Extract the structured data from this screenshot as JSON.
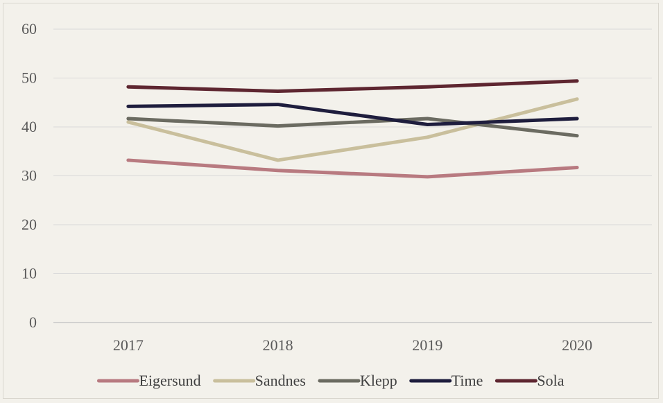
{
  "chart_data": {
    "type": "line",
    "title": "",
    "xlabel": "",
    "ylabel": "",
    "categories": [
      "2017",
      "2018",
      "2019",
      "2020"
    ],
    "ylim": [
      0,
      60
    ],
    "yticks": [
      "0",
      "10",
      "20",
      "30",
      "40",
      "50",
      "60"
    ],
    "grid": true,
    "legend_position": "bottom",
    "series": [
      {
        "name": "Eigersund",
        "color": "#b87a80",
        "values": [
          33.2,
          31.1,
          29.8,
          31.7
        ]
      },
      {
        "name": "Sandnes",
        "color": "#c9bf9c",
        "values": [
          41.0,
          33.2,
          37.9,
          45.7
        ]
      },
      {
        "name": "Klepp",
        "color": "#6b6b61",
        "values": [
          41.7,
          40.2,
          41.7,
          38.2
        ]
      },
      {
        "name": "Time",
        "color": "#1e1d3d",
        "values": [
          44.2,
          44.6,
          40.5,
          41.7
        ]
      },
      {
        "name": "Sola",
        "color": "#5e2630",
        "values": [
          48.2,
          47.3,
          48.2,
          49.4
        ]
      }
    ]
  }
}
